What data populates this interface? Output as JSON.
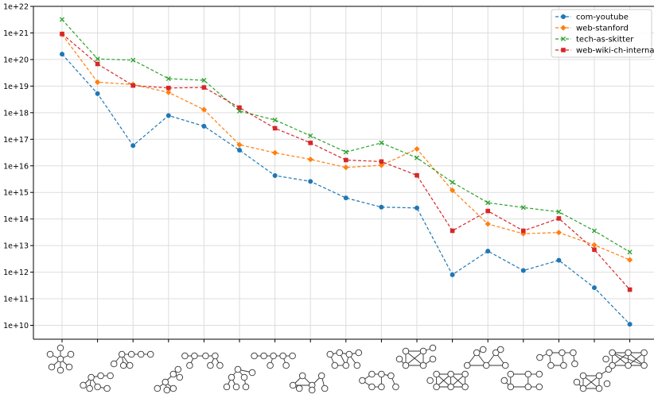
{
  "chart_data": {
    "type": "line",
    "title": "",
    "xlabel": "",
    "ylabel": "",
    "yscale": "log",
    "ylim": [
      3000000000.0,
      1e+22
    ],
    "y_ticks": [
      {
        "value": 10000000000.0,
        "label": "1e+10"
      },
      {
        "value": 100000000000.0,
        "label": "1e+11"
      },
      {
        "value": 1000000000000.0,
        "label": "1e+12"
      },
      {
        "value": 10000000000000.0,
        "label": "1e+13"
      },
      {
        "value": 100000000000000.0,
        "label": "1e+14"
      },
      {
        "value": 1000000000000000.0,
        "label": "1e+15"
      },
      {
        "value": 1e+16,
        "label": "1e+16"
      },
      {
        "value": 1e+17,
        "label": "1e+17"
      },
      {
        "value": 1e+18,
        "label": "1e+18"
      },
      {
        "value": 1e+19,
        "label": "1e+19"
      },
      {
        "value": 1e+20,
        "label": "1e+20"
      },
      {
        "value": 1e+21,
        "label": "1e+21"
      },
      {
        "value": 1e+22,
        "label": "1e+22"
      }
    ],
    "x_tick_labels": "small graph-pattern drawings (graphlets), one per category",
    "categories": [
      0,
      1,
      2,
      3,
      4,
      5,
      6,
      7,
      8,
      9,
      10,
      11,
      12,
      13,
      14,
      15,
      16
    ],
    "grid": true,
    "legend_position": "top-right",
    "series": [
      {
        "name": "com-youtube",
        "color": "#1f77b4",
        "marker": "circle",
        "values": [
          1.6e+20,
          5.2e+18,
          5.8e+16,
          7.8e+17,
          3.1e+17,
          3.9e+16,
          4300000000000000.0,
          2600000000000000.0,
          620000000000000.0,
          280000000000000.0,
          260000000000000.0,
          800000000000.0,
          6200000000000.0,
          1150000000000.0,
          2800000000000.0,
          260000000000.0,
          11000000000.0
        ]
      },
      {
        "name": "web-stanford",
        "color": "#ff7f0e",
        "marker": "diamond",
        "values": [
          8.8e+20,
          1.4e+19,
          1.15e+19,
          5.8e+18,
          1.3e+18,
          6.2e+16,
          3.1e+16,
          1.75e+16,
          8700000000000000.0,
          1.05e+16,
          4.3e+16,
          1200000000000000.0,
          65000000000000.0,
          28000000000000.0,
          31000000000000.0,
          10500000000000.0,
          2900000000000.0
        ]
      },
      {
        "name": "tech-as-skitter",
        "color": "#2ca02c",
        "marker": "x",
        "values": [
          3.2e+21,
          1.05e+20,
          9.5e+19,
          1.9e+19,
          1.65e+19,
          1.15e+18,
          5.3e+17,
          1.35e+17,
          3.3e+16,
          7.3e+16,
          2e+16,
          2400000000000000.0,
          410000000000000.0,
          270000000000000.0,
          185000000000000.0,
          36000000000000.0,
          5700000000000.0
        ]
      },
      {
        "name": "web-wiki-ch-internal",
        "color": "#d62728",
        "marker": "square",
        "values": [
          9.2e+20,
          6.8e+19,
          1.05e+19,
          8.5e+18,
          8.9e+18,
          1.55e+18,
          2.6e+17,
          7.3e+16,
          1.65e+16,
          1.45e+16,
          4400000000000000.0,
          36000000000000.0,
          200000000000000.0,
          36000000000000.0,
          105000000000000.0,
          7000000000000.0,
          220000000000.0
        ]
      }
    ]
  }
}
